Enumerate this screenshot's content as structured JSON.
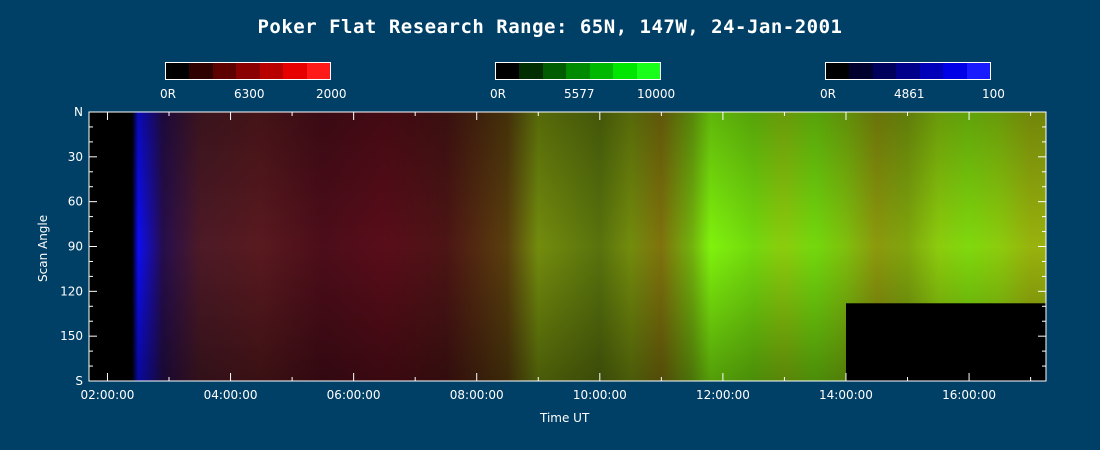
{
  "chart_data": {
    "type": "heatmap",
    "title": "Poker Flat Research Range: 65N, 147W, 24-Jan-2001",
    "xlabel": "Time UT",
    "ylabel": "Scan Angle",
    "x_ticks": [
      "02:00:00",
      "04:00:00",
      "06:00:00",
      "08:00:00",
      "10:00:00",
      "12:00:00",
      "14:00:00",
      "16:00:00"
    ],
    "y_ticks": [
      "N",
      "30",
      "60",
      "90",
      "120",
      "150",
      "S"
    ],
    "xlim_hours": [
      1.7,
      17.25
    ],
    "ylim_deg": [
      0,
      180
    ],
    "colorbars": [
      {
        "name": "6300",
        "min_label": "0R",
        "max_label": "2000",
        "color": "#ff0000",
        "steps": [
          "#000000",
          "#2e0000",
          "#5c0000",
          "#8a0000",
          "#b80000",
          "#e60000",
          "#ff1a1a"
        ]
      },
      {
        "name": "5577",
        "min_label": "0R",
        "max_label": "10000",
        "color": "#00ff00",
        "steps": [
          "#000000",
          "#002e00",
          "#005c00",
          "#008a00",
          "#00b800",
          "#00e600",
          "#1aff1a"
        ]
      },
      {
        "name": "4861",
        "min_label": "0R",
        "max_label": "100",
        "color": "#0000ff",
        "steps": [
          "#000000",
          "#00002e",
          "#00005c",
          "#00008a",
          "#0000b8",
          "#0000e6",
          "#1a1aff"
        ]
      }
    ],
    "intensity_profile": {
      "time_hours": [
        1.7,
        2.4,
        2.5,
        2.9,
        3.5,
        4.5,
        5.5,
        6.5,
        7.5,
        8.5,
        9.0,
        9.5,
        10.0,
        10.5,
        11.0,
        11.5,
        11.8,
        12.5,
        13.0,
        13.5,
        14.0,
        14.5,
        15.0,
        15.5,
        16.0,
        16.5,
        17.0
      ],
      "red": [
        0,
        0,
        0.05,
        0.15,
        0.3,
        0.35,
        0.3,
        0.35,
        0.3,
        0.35,
        0.45,
        0.4,
        0.35,
        0.45,
        0.5,
        0.45,
        0.5,
        0.45,
        0.55,
        0.45,
        0.5,
        0.55,
        0.5,
        0.55,
        0.5,
        0.55,
        0.6
      ],
      "green": [
        0,
        0,
        0.05,
        0.05,
        0.1,
        0.1,
        0.05,
        0.05,
        0.08,
        0.25,
        0.55,
        0.5,
        0.45,
        0.55,
        0.45,
        0.7,
        0.95,
        0.85,
        0.8,
        0.85,
        0.75,
        0.6,
        0.65,
        0.8,
        0.85,
        0.8,
        0.7
      ],
      "blue": [
        0,
        0,
        0.95,
        0.3,
        0.15,
        0.12,
        0.1,
        0.1,
        0.08,
        0.05,
        0.05,
        0.05,
        0.05,
        0.05,
        0.05,
        0.05,
        0.05,
        0.05,
        0.05,
        0.05,
        0.05,
        0.05,
        0.05,
        0.05,
        0.05,
        0.05,
        0.05
      ]
    },
    "no_data_regions": [
      {
        "time_start": 1.7,
        "time_end": 2.4,
        "angle_start": 0,
        "angle_end": 180
      },
      {
        "time_start": 14.0,
        "time_end": 17.25,
        "angle_start": 128,
        "angle_end": 180
      }
    ]
  }
}
